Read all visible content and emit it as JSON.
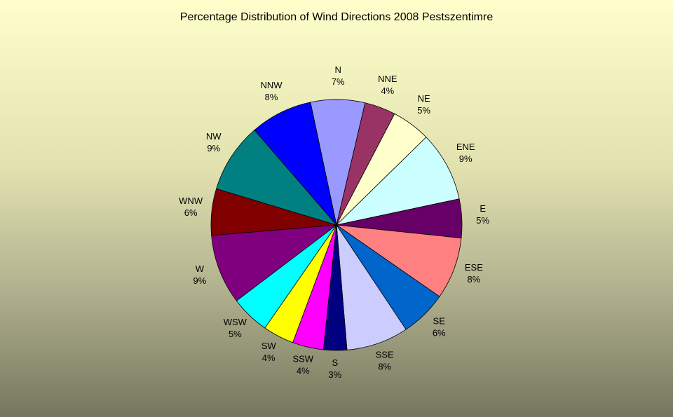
{
  "chart_data": {
    "type": "pie",
    "title": "Percentage Distribution of Wind Directions 2008 Pestszentimre",
    "slices": [
      {
        "label": "N",
        "value": 7,
        "pct_label": "7%",
        "color": "#9999ff"
      },
      {
        "label": "NNE",
        "value": 4,
        "pct_label": "4%",
        "color": "#993366"
      },
      {
        "label": "NE",
        "value": 5,
        "pct_label": "5%",
        "color": "#ffffcc"
      },
      {
        "label": "ENE",
        "value": 9,
        "pct_label": "9%",
        "color": "#ccffff"
      },
      {
        "label": "E",
        "value": 5,
        "pct_label": "5%",
        "color": "#660066"
      },
      {
        "label": "ESE",
        "value": 8,
        "pct_label": "8%",
        "color": "#ff8080"
      },
      {
        "label": "SE",
        "value": 6,
        "pct_label": "6%",
        "color": "#0066cc"
      },
      {
        "label": "SSE",
        "value": 8,
        "pct_label": "8%",
        "color": "#ccccff"
      },
      {
        "label": "S",
        "value": 3,
        "pct_label": "3%",
        "color": "#000080"
      },
      {
        "label": "SSW",
        "value": 4,
        "pct_label": "4%",
        "color": "#ff00ff"
      },
      {
        "label": "SW",
        "value": 4,
        "pct_label": "4%",
        "color": "#ffff00"
      },
      {
        "label": "WSW",
        "value": 5,
        "pct_label": "5%",
        "color": "#00ffff"
      },
      {
        "label": "W",
        "value": 9,
        "pct_label": "9%",
        "color": "#800080"
      },
      {
        "label": "WNW",
        "value": 6,
        "pct_label": "6%",
        "color": "#800000"
      },
      {
        "label": "NW",
        "value": 9,
        "pct_label": "9%",
        "color": "#008080"
      },
      {
        "label": "NNW",
        "value": 8,
        "pct_label": "8%",
        "color": "#0000ff"
      }
    ]
  }
}
